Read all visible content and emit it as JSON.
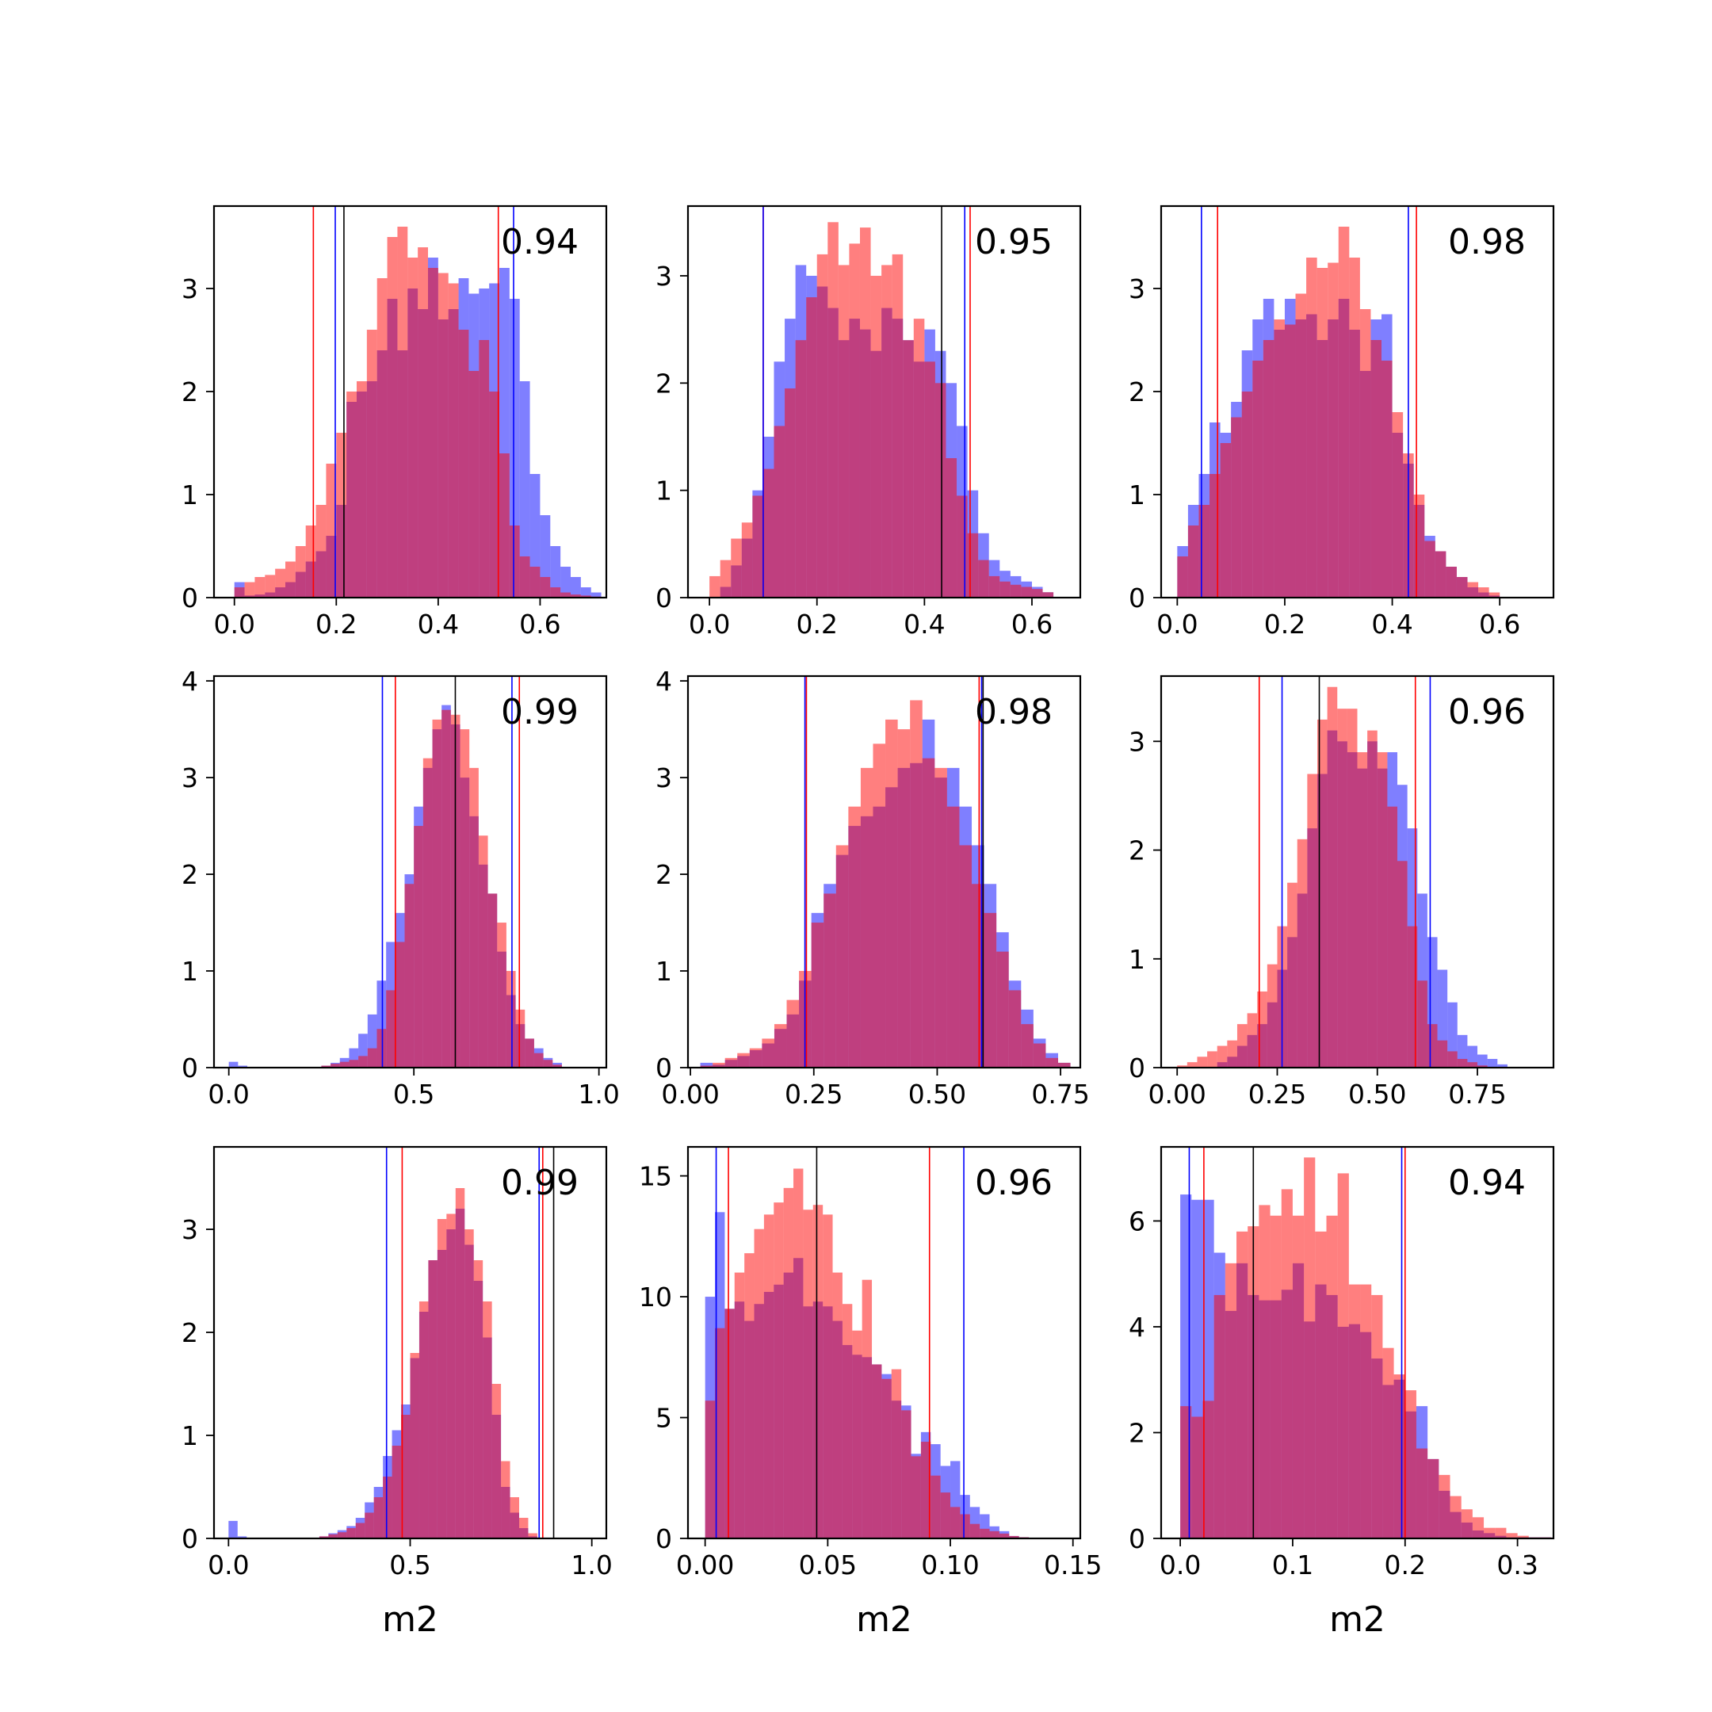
{
  "colors": {
    "blue": "#0000ff",
    "red": "#ff0000",
    "overlap": "#bf3a75",
    "axis": "#000000",
    "background": "#ffffff"
  },
  "chart_data": [
    {
      "type": "histogram",
      "annotation": "0.94",
      "xlabel": "",
      "ylabel": "",
      "xlim": [
        -0.04,
        0.73
      ],
      "ylim": [
        0,
        3.8
      ],
      "xticks": [
        0.0,
        0.2,
        0.4,
        0.6
      ],
      "xtick_labels": [
        "0.0",
        "0.2",
        "0.4",
        "0.6"
      ],
      "yticks": [
        0,
        1,
        2,
        3
      ],
      "ytick_labels": [
        "0",
        "1",
        "2",
        "3"
      ],
      "bin_start": 0.0,
      "bin_width": 0.02,
      "blue": [
        0.15,
        0.02,
        0.03,
        0.05,
        0.1,
        0.15,
        0.25,
        0.35,
        0.45,
        0.6,
        0.9,
        1.9,
        2.0,
        2.1,
        2.4,
        2.9,
        2.4,
        3.0,
        2.8,
        3.3,
        2.7,
        2.8,
        3.1,
        2.95,
        3.0,
        3.05,
        3.2,
        2.9,
        2.1,
        1.2,
        0.8,
        0.5,
        0.3,
        0.2,
        0.1,
        0.05
      ],
      "red": [
        0.1,
        0.15,
        0.2,
        0.22,
        0.28,
        0.35,
        0.5,
        0.7,
        0.9,
        1.3,
        1.6,
        2.0,
        2.1,
        2.6,
        3.1,
        3.5,
        3.6,
        3.3,
        3.4,
        3.2,
        3.15,
        3.05,
        2.6,
        2.2,
        2.5,
        2.0,
        1.4,
        0.7,
        0.4,
        0.3,
        0.2,
        0.1,
        0.05,
        0.03,
        0.02,
        0.01
      ],
      "vlines_blue": [
        0.198,
        0.548
      ],
      "vlines_red": [
        0.155,
        0.518
      ],
      "vlines_black": [
        0.215
      ]
    },
    {
      "type": "histogram",
      "annotation": "0.95",
      "xlabel": "",
      "ylabel": "",
      "xlim": [
        -0.04,
        0.69
      ],
      "ylim": [
        0,
        3.65
      ],
      "xticks": [
        0.0,
        0.2,
        0.4,
        0.6
      ],
      "xtick_labels": [
        "0.0",
        "0.2",
        "0.4",
        "0.6"
      ],
      "yticks": [
        0,
        1,
        2,
        3
      ],
      "ytick_labels": [
        "0",
        "1",
        "2",
        "3"
      ],
      "bin_start": 0.0,
      "bin_width": 0.02,
      "blue": [
        0.0,
        0.1,
        0.3,
        0.55,
        1.0,
        1.5,
        2.2,
        2.6,
        3.1,
        3.0,
        2.9,
        2.7,
        2.4,
        2.6,
        2.5,
        2.3,
        2.7,
        2.6,
        2.4,
        2.2,
        2.5,
        2.3,
        2.0,
        1.6,
        1.0,
        0.6,
        0.35,
        0.25,
        0.2,
        0.15,
        0.1,
        0.05
      ],
      "red": [
        0.2,
        0.35,
        0.55,
        0.7,
        0.95,
        1.2,
        1.6,
        1.95,
        2.4,
        2.8,
        3.2,
        3.5,
        3.1,
        3.3,
        3.45,
        3.0,
        3.1,
        3.2,
        2.4,
        2.6,
        2.2,
        2.0,
        1.3,
        0.95,
        0.6,
        0.35,
        0.2,
        0.15,
        0.12,
        0.1,
        0.08,
        0.05
      ],
      "vlines_blue": [
        0.1,
        0.475
      ],
      "vlines_red": [
        0.1,
        0.485
      ],
      "vlines_black": [
        0.432
      ]
    },
    {
      "type": "histogram",
      "annotation": "0.98",
      "xlabel": "",
      "ylabel": "",
      "xlim": [
        -0.03,
        0.7
      ],
      "ylim": [
        0,
        3.8
      ],
      "xticks": [
        0.0,
        0.2,
        0.4,
        0.6
      ],
      "xtick_labels": [
        "0.0",
        "0.2",
        "0.4",
        "0.6"
      ],
      "yticks": [
        0,
        1,
        2,
        3
      ],
      "ytick_labels": [
        "0",
        "1",
        "2",
        "3"
      ],
      "bin_start": 0.0,
      "bin_width": 0.02,
      "blue": [
        0.5,
        0.9,
        1.2,
        1.7,
        1.6,
        1.9,
        2.4,
        2.7,
        2.9,
        2.6,
        2.9,
        2.7,
        2.75,
        2.5,
        2.7,
        2.9,
        2.6,
        2.2,
        2.7,
        2.75,
        1.6,
        1.3,
        0.9,
        0.6,
        0.45,
        0.3,
        0.2,
        0.1,
        0.05,
        0.02
      ],
      "red": [
        0.4,
        0.7,
        0.9,
        1.2,
        1.5,
        1.75,
        2.0,
        2.3,
        2.5,
        2.7,
        2.65,
        2.95,
        3.3,
        3.2,
        3.25,
        3.6,
        3.3,
        2.8,
        2.5,
        2.3,
        1.8,
        1.4,
        1.0,
        0.55,
        0.45,
        0.3,
        0.2,
        0.15,
        0.1,
        0.05
      ],
      "vlines_blue": [
        0.045,
        0.43
      ],
      "vlines_red": [
        0.075,
        0.445
      ],
      "vlines_black": []
    },
    {
      "type": "histogram",
      "annotation": "0.99",
      "xlabel": "",
      "ylabel": "",
      "xlim": [
        -0.04,
        1.02
      ],
      "ylim": [
        0,
        4.05
      ],
      "xticks": [
        0.0,
        0.5,
        1.0
      ],
      "xtick_labels": [
        "0.0",
        "0.5",
        "1.0"
      ],
      "yticks": [
        0,
        1,
        2,
        3,
        4
      ],
      "ytick_labels": [
        "0",
        "1",
        "2",
        "3",
        "4"
      ],
      "bin_start": 0.0,
      "bin_width": 0.025,
      "blue": [
        0.06,
        0.02,
        0.0,
        0.0,
        0.0,
        0.0,
        0.0,
        0.0,
        0.0,
        0.0,
        0.02,
        0.05,
        0.1,
        0.2,
        0.35,
        0.55,
        0.9,
        1.3,
        1.6,
        2.0,
        2.7,
        3.1,
        3.5,
        3.75,
        3.55,
        3.0,
        2.6,
        2.1,
        1.8,
        1.2,
        0.75,
        0.45,
        0.3,
        0.2,
        0.1,
        0.05
      ],
      "red": [
        0.0,
        0.0,
        0.0,
        0.0,
        0.0,
        0.0,
        0.0,
        0.0,
        0.0,
        0.0,
        0.02,
        0.04,
        0.06,
        0.08,
        0.12,
        0.2,
        0.4,
        0.8,
        1.3,
        1.9,
        2.5,
        3.2,
        3.6,
        3.7,
        3.65,
        3.5,
        3.1,
        2.4,
        1.8,
        1.5,
        1.0,
        0.6,
        0.3,
        0.15,
        0.08,
        0.03
      ],
      "vlines_blue": [
        0.415,
        0.765
      ],
      "vlines_red": [
        0.45,
        0.785
      ],
      "vlines_black": [
        0.612
      ]
    },
    {
      "type": "histogram",
      "annotation": "0.98",
      "xlabel": "",
      "ylabel": "",
      "xlim": [
        -0.005,
        0.79
      ],
      "ylim": [
        0,
        4.05
      ],
      "xticks": [
        0.0,
        0.25,
        0.5,
        0.75
      ],
      "xtick_labels": [
        "0.00",
        "0.25",
        "0.50",
        "0.75"
      ],
      "yticks": [
        0,
        1,
        2,
        3,
        4
      ],
      "ytick_labels": [
        "0",
        "1",
        "2",
        "3",
        "4"
      ],
      "bin_start": 0.02,
      "bin_width": 0.025,
      "blue": [
        0.05,
        0.03,
        0.08,
        0.12,
        0.18,
        0.25,
        0.4,
        0.55,
        0.9,
        1.6,
        1.9,
        2.2,
        2.5,
        2.6,
        2.7,
        2.9,
        3.1,
        3.15,
        3.6,
        3.0,
        3.1,
        2.7,
        2.3,
        1.9,
        1.4,
        0.9,
        0.6,
        0.3,
        0.15,
        0.05
      ],
      "red": [
        0.02,
        0.05,
        0.1,
        0.15,
        0.2,
        0.3,
        0.45,
        0.7,
        1.0,
        1.5,
        1.8,
        2.3,
        2.7,
        3.1,
        3.35,
        3.6,
        3.5,
        3.8,
        3.2,
        3.1,
        2.7,
        2.3,
        1.9,
        1.6,
        1.2,
        0.8,
        0.45,
        0.25,
        0.1,
        0.05
      ],
      "vlines_blue": [
        0.232,
        0.59
      ],
      "vlines_red": [
        0.235,
        0.585
      ],
      "vlines_black": [
        0.593
      ]
    },
    {
      "type": "histogram",
      "annotation": "0.96",
      "xlabel": "",
      "ylabel": "",
      "xlim": [
        -0.04,
        0.94
      ],
      "ylim": [
        0,
        3.6
      ],
      "xticks": [
        0.0,
        0.25,
        0.5,
        0.75
      ],
      "xtick_labels": [
        "0.00",
        "0.25",
        "0.50",
        "0.75"
      ],
      "yticks": [
        0,
        1,
        2,
        3
      ],
      "ytick_labels": [
        "0",
        "1",
        "2",
        "3"
      ],
      "bin_start": 0.0,
      "bin_width": 0.025,
      "blue": [
        0.0,
        0.0,
        0.0,
        0.0,
        0.05,
        0.1,
        0.2,
        0.3,
        0.4,
        0.6,
        0.9,
        1.2,
        1.6,
        2.2,
        2.7,
        3.1,
        3.0,
        2.9,
        2.75,
        3.0,
        2.75,
        2.9,
        2.6,
        2.2,
        1.6,
        1.2,
        0.9,
        0.6,
        0.3,
        0.2,
        0.12,
        0.08,
        0.03
      ],
      "red": [
        0.02,
        0.05,
        0.1,
        0.15,
        0.2,
        0.25,
        0.4,
        0.5,
        0.7,
        0.95,
        1.3,
        1.7,
        2.1,
        2.7,
        3.2,
        3.5,
        3.3,
        3.3,
        2.9,
        3.1,
        2.9,
        2.4,
        1.9,
        1.3,
        0.8,
        0.4,
        0.25,
        0.15,
        0.08,
        0.05,
        0.02,
        0.0,
        0.0
      ],
      "vlines_blue": [
        0.262,
        0.632
      ],
      "vlines_red": [
        0.205,
        0.595
      ],
      "vlines_black": [
        0.355
      ]
    },
    {
      "type": "histogram",
      "annotation": "0.99",
      "xlabel": "m2",
      "ylabel": "",
      "xlim": [
        -0.04,
        1.04
      ],
      "ylim": [
        0,
        3.8
      ],
      "xticks": [
        0.0,
        0.5,
        1.0
      ],
      "xtick_labels": [
        "0.0",
        "0.5",
        "1.0"
      ],
      "yticks": [
        0,
        1,
        2,
        3
      ],
      "ytick_labels": [
        "0",
        "1",
        "2",
        "3"
      ],
      "bin_start": 0.0,
      "bin_width": 0.025,
      "blue": [
        0.17,
        0.02,
        0.0,
        0.0,
        0.0,
        0.0,
        0.0,
        0.0,
        0.0,
        0.0,
        0.02,
        0.05,
        0.08,
        0.12,
        0.2,
        0.35,
        0.5,
        0.8,
        1.05,
        1.3,
        1.75,
        2.2,
        2.7,
        2.8,
        3.0,
        3.2,
        2.85,
        2.5,
        1.95,
        1.2,
        0.5,
        0.25,
        0.1,
        0.02
      ],
      "red": [
        0.0,
        0.0,
        0.0,
        0.0,
        0.0,
        0.0,
        0.0,
        0.0,
        0.0,
        0.0,
        0.02,
        0.04,
        0.06,
        0.1,
        0.15,
        0.25,
        0.4,
        0.6,
        0.9,
        1.2,
        1.8,
        2.3,
        2.7,
        3.1,
        3.15,
        3.4,
        3.0,
        2.7,
        2.3,
        1.5,
        0.75,
        0.4,
        0.2,
        0.05
      ],
      "vlines_blue": [
        0.435,
        0.855
      ],
      "vlines_red": [
        0.478,
        0.865
      ],
      "vlines_black": [
        0.895
      ]
    },
    {
      "type": "histogram",
      "annotation": "0.96",
      "xlabel": "m2",
      "ylabel": "",
      "xlim": [
        -0.007,
        0.153
      ],
      "ylim": [
        0,
        16.2
      ],
      "xticks": [
        0.0,
        0.05,
        0.1,
        0.15
      ],
      "xtick_labels": [
        "0.00",
        "0.05",
        "0.10",
        "0.15"
      ],
      "yticks": [
        0,
        5,
        10,
        15
      ],
      "ytick_labels": [
        "0",
        "5",
        "10",
        "15"
      ],
      "bin_start": 0.0,
      "bin_width": 0.004,
      "blue": [
        10.0,
        13.5,
        9.5,
        9.8,
        9.0,
        9.7,
        10.2,
        10.5,
        11.0,
        11.6,
        9.6,
        9.8,
        9.6,
        9.0,
        8.0,
        7.6,
        7.5,
        7.2,
        6.8,
        5.7,
        5.5,
        3.5,
        4.4,
        3.9,
        3.0,
        3.2,
        1.8,
        1.3,
        1.0,
        0.5,
        0.3,
        0.1,
        0.05,
        0.02
      ],
      "red": [
        5.7,
        8.7,
        9.5,
        11.0,
        11.8,
        12.8,
        13.4,
        13.9,
        14.5,
        15.3,
        13.6,
        13.8,
        13.4,
        11.0,
        9.7,
        8.6,
        10.7,
        7.2,
        6.6,
        7.0,
        5.3,
        3.4,
        4.0,
        2.6,
        1.9,
        1.3,
        1.0,
        0.6,
        0.4,
        0.3,
        0.2,
        0.1,
        0.05,
        0.02
      ],
      "vlines_blue": [
        0.0045,
        0.1055
      ],
      "vlines_red": [
        0.0095,
        0.0915
      ],
      "vlines_black": [
        0.0455
      ]
    },
    {
      "type": "histogram",
      "annotation": "0.94",
      "xlabel": "m2",
      "ylabel": "",
      "xlim": [
        -0.017,
        0.332
      ],
      "ylim": [
        0,
        7.4
      ],
      "xticks": [
        0.0,
        0.1,
        0.2,
        0.3
      ],
      "xtick_labels": [
        "0.0",
        "0.1",
        "0.2",
        "0.3"
      ],
      "bin_start": 0.0,
      "bin_width": 0.01,
      "yticks": [
        0,
        2,
        4,
        6
      ],
      "ytick_labels": [
        "0",
        "2",
        "4",
        "6"
      ],
      "blue": [
        6.5,
        6.4,
        6.4,
        5.4,
        4.3,
        5.2,
        4.6,
        4.5,
        4.5,
        4.7,
        5.2,
        4.1,
        4.8,
        4.6,
        4.0,
        4.05,
        3.9,
        3.4,
        2.9,
        3.0,
        2.4,
        2.5,
        1.5,
        0.9,
        0.5,
        0.3,
        0.15,
        0.1,
        0.05,
        0.02,
        0.02,
        0.02,
        0.02
      ],
      "red": [
        2.5,
        2.3,
        2.6,
        4.6,
        5.2,
        5.8,
        5.9,
        6.3,
        6.1,
        6.6,
        6.1,
        7.2,
        5.8,
        6.1,
        6.9,
        4.8,
        4.8,
        4.6,
        3.6,
        3.1,
        2.8,
        1.7,
        1.5,
        1.2,
        0.8,
        0.55,
        0.4,
        0.2,
        0.2,
        0.1,
        0.05,
        0.02,
        0.02
      ],
      "vlines_blue": [
        0.008,
        0.197
      ],
      "vlines_red": [
        0.021,
        0.2
      ],
      "vlines_black": [
        0.065
      ]
    }
  ]
}
